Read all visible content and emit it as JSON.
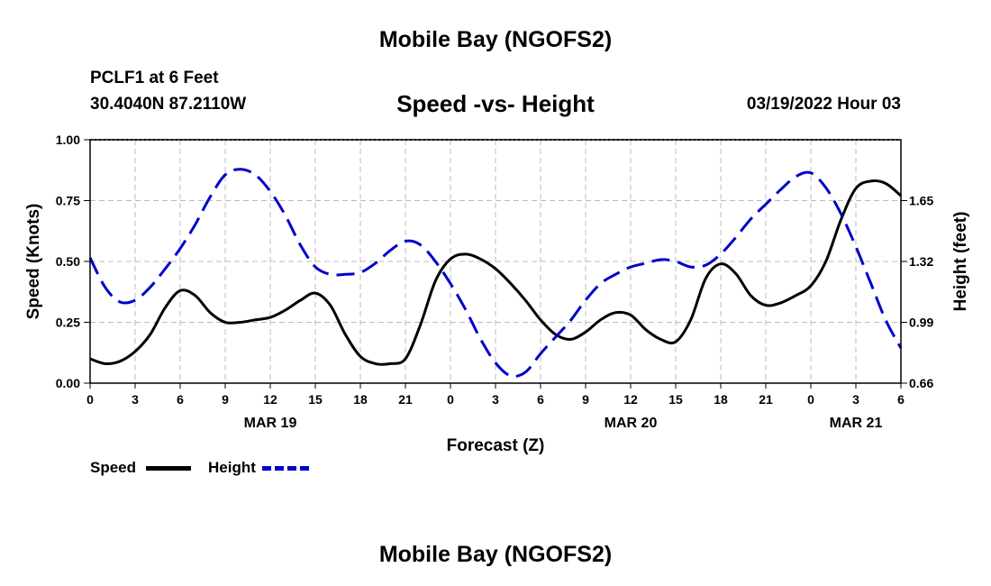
{
  "header": {
    "title": "Mobile Bay (NGOFS2)",
    "station": "PCLF1 at 6 Feet",
    "coords": "30.4040N  87.2110W",
    "plot_title": "Speed -vs- Height",
    "timestamp": "03/19/2022 Hour 03"
  },
  "footer": {
    "title": "Mobile Bay (NGOFS2)"
  },
  "legend": {
    "speed_label": "Speed",
    "height_label": "Height"
  },
  "colors": {
    "speed": "#000000",
    "height": "#0000cc",
    "grid": "#bbbbbb"
  },
  "chart_data": {
    "type": "line",
    "title": "Speed -vs- Height",
    "xlabel": "Forecast (Z)",
    "ylabel": "Speed (Knots)",
    "y2label": "Height (feet)",
    "xlim": [
      0,
      54
    ],
    "ylim": [
      0,
      1.0
    ],
    "y2lim": [
      0.66,
      1.98
    ],
    "x_ticks": [
      0,
      3,
      6,
      9,
      12,
      15,
      18,
      21,
      24,
      27,
      30,
      33,
      36,
      39,
      42,
      45,
      48,
      51,
      54
    ],
    "x_tick_labels": [
      "0",
      "3",
      "6",
      "9",
      "12",
      "15",
      "18",
      "21",
      "0",
      "3",
      "6",
      "9",
      "12",
      "15",
      "18",
      "21",
      "0",
      "3",
      "6"
    ],
    "date_labels": [
      {
        "x": 12,
        "label": "MAR 19"
      },
      {
        "x": 36,
        "label": "MAR 20"
      },
      {
        "x": 51,
        "label": "MAR 21"
      }
    ],
    "y_ticks": [
      0,
      0.25,
      0.5,
      0.75,
      1.0
    ],
    "y_tick_labels": [
      "0.00",
      "0.25",
      "0.50",
      "0.75",
      "1.00"
    ],
    "y2_ticks": [
      0.66,
      0.99,
      1.32,
      1.65
    ],
    "y2_tick_labels": [
      "0.66",
      "0.99",
      "1.32",
      "1.65"
    ],
    "series": [
      {
        "name": "Speed",
        "axis": "left",
        "style": "solid",
        "x": [
          0,
          1,
          2,
          3,
          4,
          5,
          6,
          7,
          8,
          9,
          10,
          11,
          12,
          13,
          14,
          15,
          16,
          17,
          18,
          19,
          20,
          21,
          22,
          23,
          24,
          25,
          26,
          27,
          28,
          29,
          30,
          31,
          32,
          33,
          34,
          35,
          36,
          37,
          38,
          39,
          40,
          41,
          42,
          43,
          44,
          45,
          46,
          47,
          48,
          49,
          50,
          51,
          52,
          53,
          54
        ],
        "values": [
          0.1,
          0.08,
          0.09,
          0.13,
          0.2,
          0.31,
          0.38,
          0.36,
          0.29,
          0.25,
          0.25,
          0.26,
          0.27,
          0.3,
          0.34,
          0.37,
          0.32,
          0.2,
          0.11,
          0.08,
          0.08,
          0.1,
          0.24,
          0.42,
          0.51,
          0.53,
          0.51,
          0.47,
          0.41,
          0.34,
          0.26,
          0.2,
          0.18,
          0.21,
          0.26,
          0.29,
          0.28,
          0.22,
          0.18,
          0.17,
          0.26,
          0.43,
          0.49,
          0.45,
          0.36,
          0.32,
          0.33,
          0.36,
          0.4,
          0.5,
          0.67,
          0.8,
          0.83,
          0.82,
          0.77
        ]
      },
      {
        "name": "Height",
        "axis": "right",
        "style": "dashed",
        "x": [
          0,
          1,
          2,
          3,
          4,
          5,
          6,
          7,
          8,
          9,
          10,
          11,
          12,
          13,
          14,
          15,
          16,
          17,
          18,
          19,
          20,
          21,
          22,
          23,
          24,
          25,
          26,
          27,
          28,
          29,
          30,
          31,
          32,
          33,
          34,
          35,
          36,
          37,
          38,
          39,
          40,
          41,
          42,
          43,
          44,
          45,
          46,
          47,
          48,
          49,
          50,
          51,
          52,
          53,
          54
        ],
        "values": [
          1.34,
          1.18,
          1.1,
          1.11,
          1.18,
          1.28,
          1.39,
          1.52,
          1.67,
          1.79,
          1.82,
          1.79,
          1.7,
          1.57,
          1.41,
          1.29,
          1.25,
          1.25,
          1.26,
          1.31,
          1.38,
          1.43,
          1.41,
          1.32,
          1.2,
          1.06,
          0.9,
          0.77,
          0.7,
          0.72,
          0.82,
          0.91,
          1.0,
          1.11,
          1.2,
          1.25,
          1.29,
          1.31,
          1.33,
          1.32,
          1.29,
          1.3,
          1.36,
          1.45,
          1.55,
          1.63,
          1.71,
          1.78,
          1.8,
          1.72,
          1.58,
          1.4,
          1.2,
          1.0,
          0.85
        ]
      }
    ]
  }
}
